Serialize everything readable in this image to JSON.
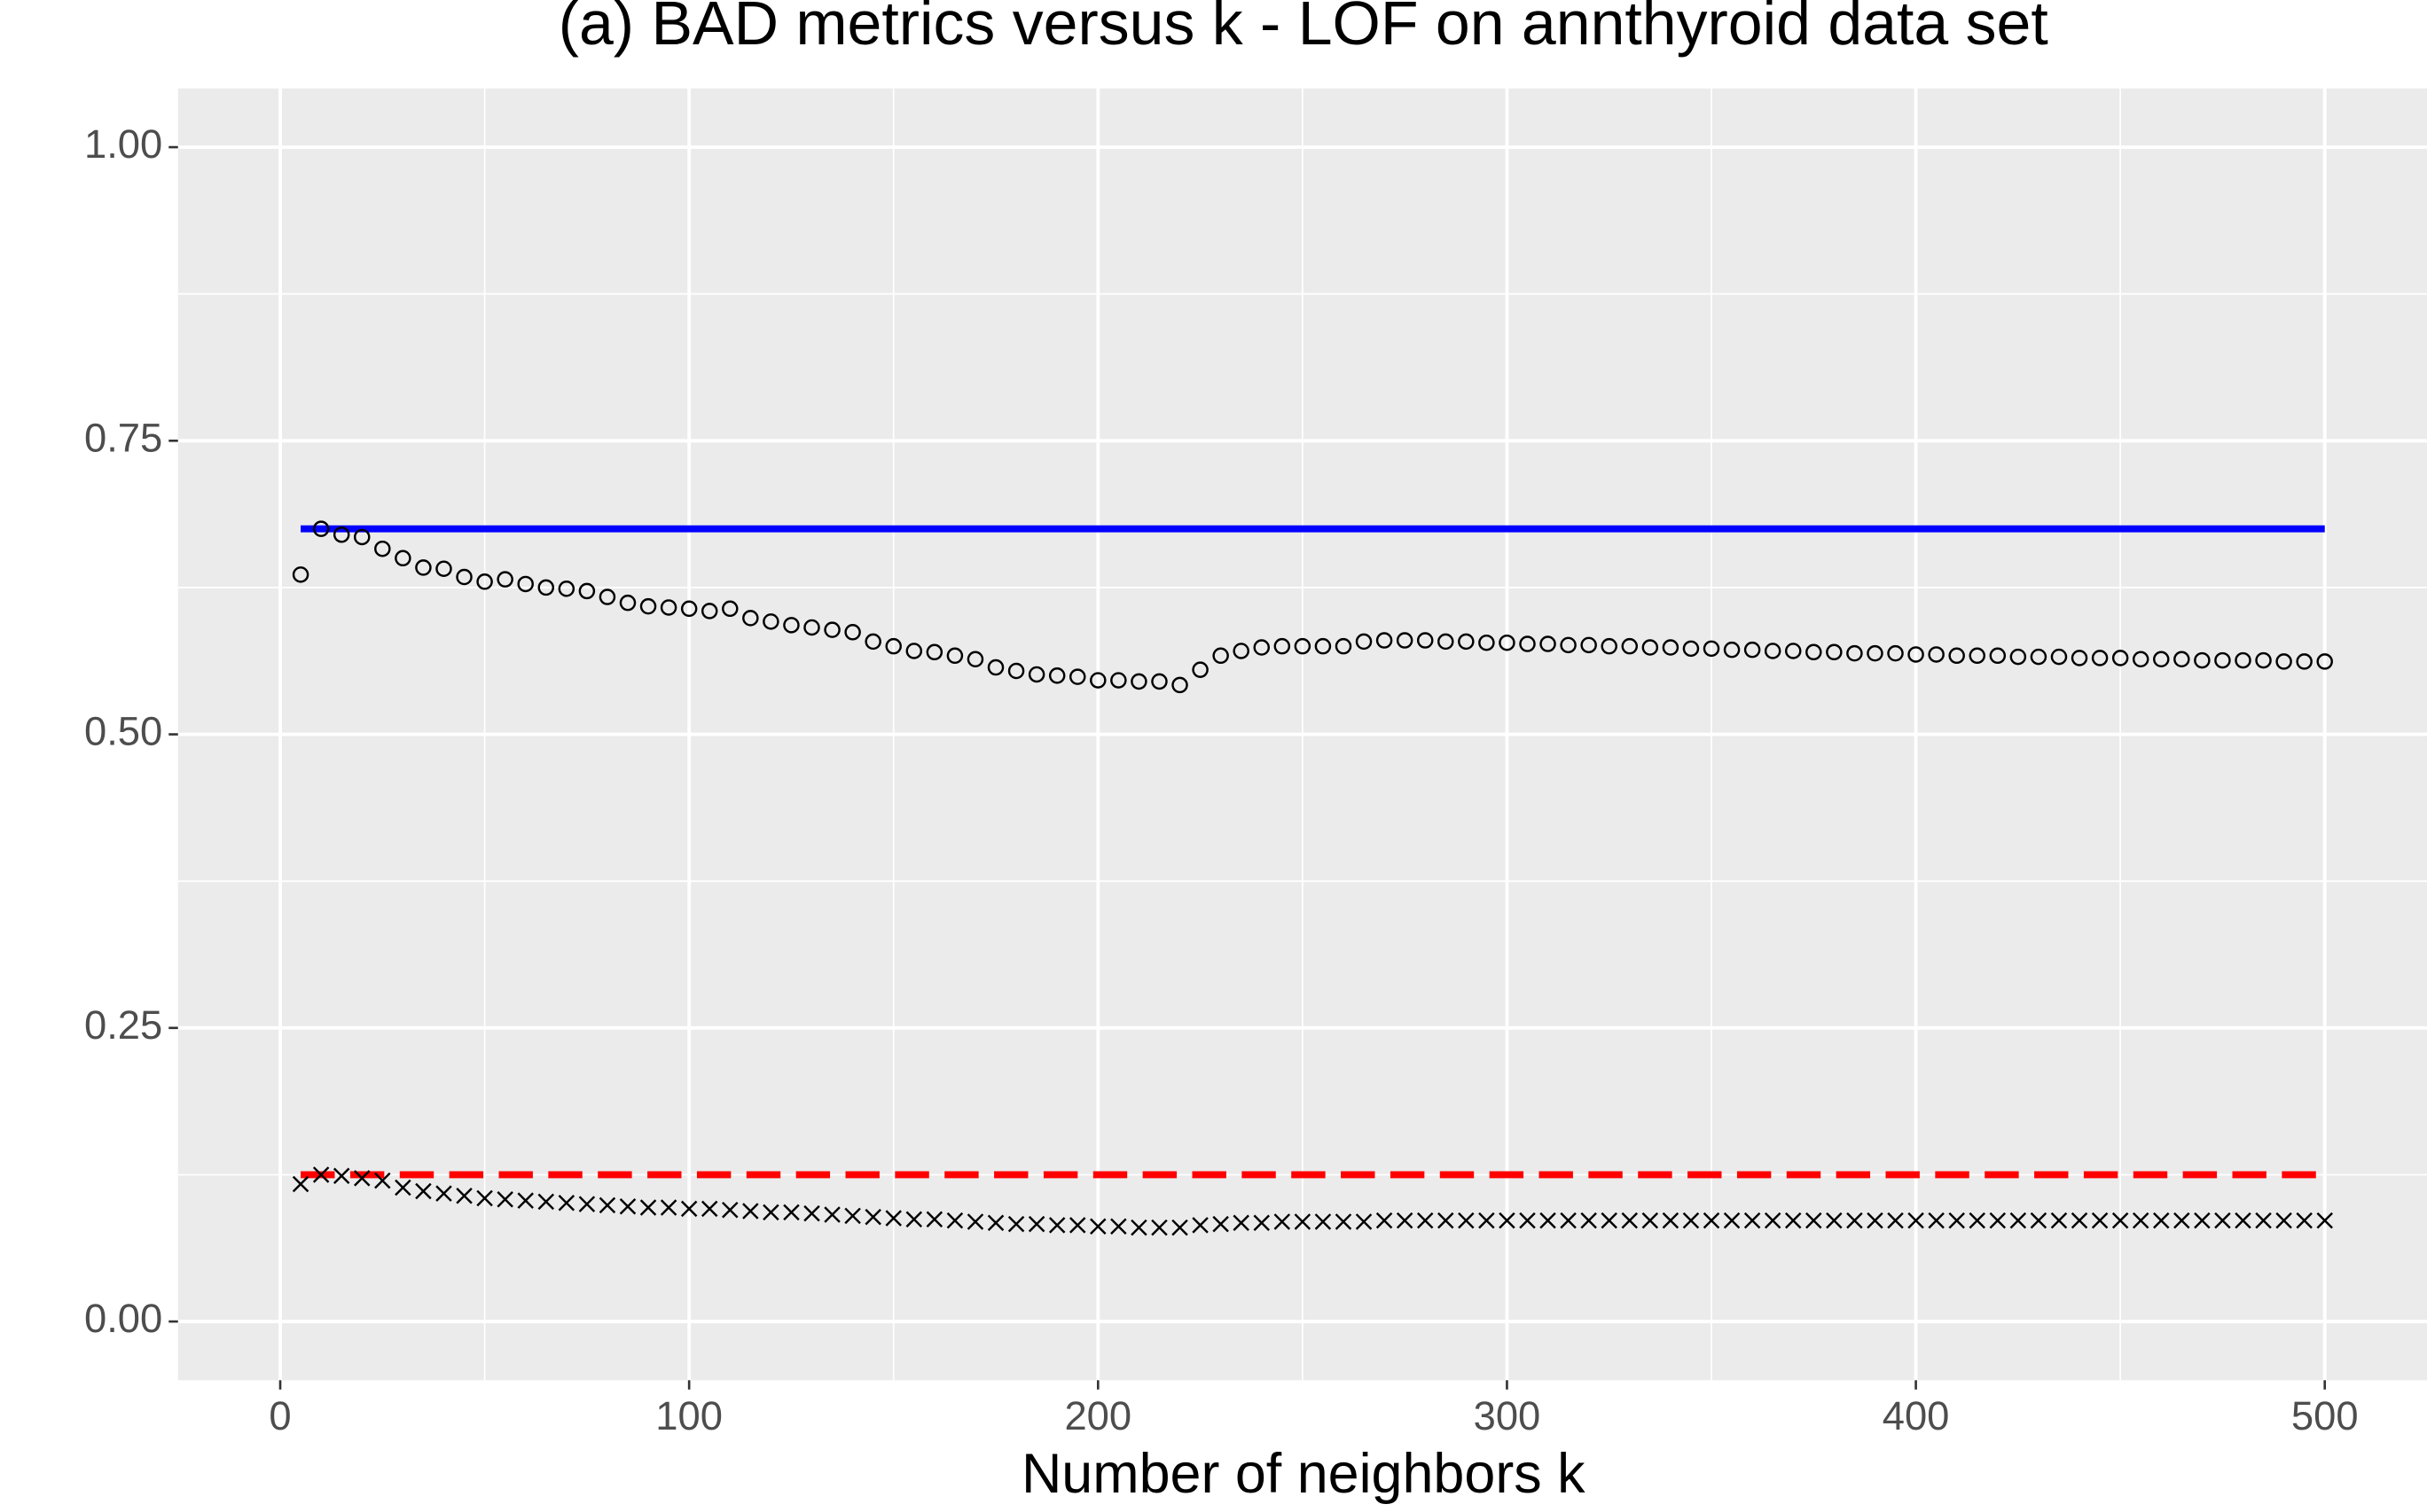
{
  "chart_data": {
    "type": "scatter",
    "title": "(a) BAD metrics versus k - LOF on annthyroid data set",
    "x_label": "Number of neighbors k",
    "xlim": [
      -25,
      525
    ],
    "xticks": [
      0,
      100,
      200,
      300,
      400,
      500
    ],
    "ylim": [
      -0.05,
      1.05
    ],
    "yticks": [
      {
        "value": 0,
        "label": "0.00"
      },
      {
        "value": 0.25,
        "label": "0.25"
      },
      {
        "value": 0.5,
        "label": "0.50"
      },
      {
        "value": 0.75,
        "label": "0.75"
      },
      {
        "value": 1,
        "label": "1.00"
      }
    ],
    "grid": true,
    "x": [
      5,
      10,
      15,
      20,
      25,
      30,
      35,
      40,
      45,
      50,
      55,
      60,
      65,
      70,
      75,
      80,
      85,
      90,
      95,
      100,
      105,
      110,
      115,
      120,
      125,
      130,
      135,
      140,
      145,
      150,
      155,
      160,
      165,
      170,
      175,
      180,
      185,
      190,
      195,
      200,
      205,
      210,
      215,
      220,
      225,
      230,
      235,
      240,
      245,
      250,
      255,
      260,
      265,
      270,
      275,
      280,
      285,
      290,
      295,
      300,
      305,
      310,
      315,
      320,
      325,
      330,
      335,
      340,
      345,
      350,
      355,
      360,
      365,
      370,
      375,
      380,
      385,
      390,
      395,
      400,
      405,
      410,
      415,
      420,
      425,
      430,
      435,
      440,
      445,
      450,
      455,
      460,
      465,
      470,
      475,
      480,
      485,
      490,
      495,
      500
    ],
    "series": [
      {
        "marker": "circle",
        "color": "#000000",
        "values": [
          0.636,
          0.675,
          0.67,
          0.668,
          0.658,
          0.65,
          0.642,
          0.641,
          0.634,
          0.63,
          0.632,
          0.628,
          0.625,
          0.624,
          0.622,
          0.617,
          0.612,
          0.609,
          0.608,
          0.607,
          0.605,
          0.607,
          0.599,
          0.596,
          0.593,
          0.591,
          0.589,
          0.587,
          0.579,
          0.575,
          0.571,
          0.57,
          0.567,
          0.564,
          0.557,
          0.554,
          0.551,
          0.55,
          0.549,
          0.546,
          0.546,
          0.545,
          0.545,
          0.542,
          0.555,
          0.567,
          0.571,
          0.574,
          0.575,
          0.575,
          0.575,
          0.575,
          0.579,
          0.58,
          0.58,
          0.58,
          0.579,
          0.579,
          0.578,
          0.578,
          0.577,
          0.577,
          0.576,
          0.576,
          0.575,
          0.575,
          0.574,
          0.574,
          0.573,
          0.573,
          0.572,
          0.572,
          0.571,
          0.571,
          0.57,
          0.57,
          0.569,
          0.569,
          0.569,
          0.568,
          0.568,
          0.567,
          0.567,
          0.567,
          0.566,
          0.566,
          0.566,
          0.565,
          0.565,
          0.565,
          0.564,
          0.564,
          0.564,
          0.563,
          0.563,
          0.563,
          0.563,
          0.562,
          0.562,
          0.562
        ]
      },
      {
        "marker": "cross",
        "color": "#000000",
        "values": [
          0.117,
          0.125,
          0.124,
          0.122,
          0.12,
          0.114,
          0.111,
          0.109,
          0.107,
          0.105,
          0.104,
          0.103,
          0.102,
          0.101,
          0.1,
          0.099,
          0.098,
          0.097,
          0.097,
          0.096,
          0.096,
          0.095,
          0.094,
          0.093,
          0.093,
          0.092,
          0.091,
          0.09,
          0.089,
          0.088,
          0.087,
          0.087,
          0.086,
          0.085,
          0.084,
          0.083,
          0.083,
          0.082,
          0.082,
          0.081,
          0.081,
          0.08,
          0.08,
          0.08,
          0.082,
          0.083,
          0.084,
          0.084,
          0.085,
          0.085,
          0.085,
          0.085,
          0.085,
          0.086,
          0.086,
          0.086,
          0.086,
          0.086,
          0.086,
          0.086,
          0.086,
          0.086,
          0.086,
          0.086,
          0.086,
          0.086,
          0.086,
          0.086,
          0.086,
          0.086,
          0.086,
          0.086,
          0.086,
          0.086,
          0.086,
          0.086,
          0.086,
          0.086,
          0.086,
          0.086,
          0.086,
          0.086,
          0.086,
          0.086,
          0.086,
          0.086,
          0.086,
          0.086,
          0.086,
          0.086,
          0.086,
          0.086,
          0.086,
          0.086,
          0.086,
          0.086,
          0.086,
          0.086,
          0.086,
          0.086
        ]
      }
    ],
    "hlines": [
      {
        "value": 0.675,
        "color": "#0000ff",
        "style": "solid"
      },
      {
        "value": 0.125,
        "color": "#ff0000",
        "style": "dashed"
      }
    ]
  }
}
